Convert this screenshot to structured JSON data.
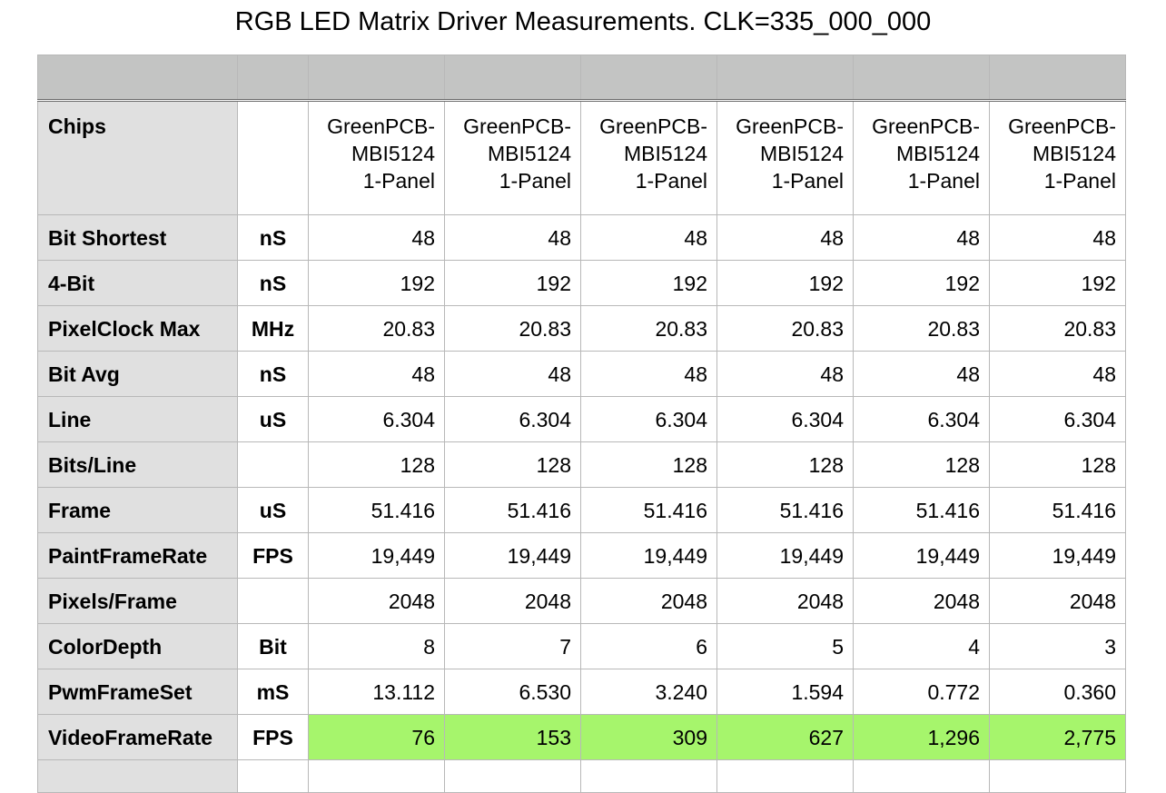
{
  "title": "RGB LED Matrix Driver Measurements. CLK=335_000_000",
  "chips": {
    "label": "Chips",
    "unit": "",
    "columns": [
      [
        "GreenPCB-",
        "MBI5124",
        "1-Panel"
      ],
      [
        "GreenPCB-",
        "MBI5124",
        "1-Panel"
      ],
      [
        "GreenPCB-",
        "MBI5124",
        "1-Panel"
      ],
      [
        "GreenPCB-",
        "MBI5124",
        "1-Panel"
      ],
      [
        "GreenPCB-",
        "MBI5124",
        "1-Panel"
      ],
      [
        "GreenPCB-",
        "MBI5124",
        "1-Panel"
      ]
    ]
  },
  "rows": [
    {
      "label": "Bit Shortest",
      "unit": "nS",
      "values": [
        "48",
        "48",
        "48",
        "48",
        "48",
        "48"
      ]
    },
    {
      "label": "4-Bit",
      "unit": "nS",
      "values": [
        "192",
        "192",
        "192",
        "192",
        "192",
        "192"
      ]
    },
    {
      "label": "PixelClock Max",
      "unit": "MHz",
      "values": [
        "20.83",
        "20.83",
        "20.83",
        "20.83",
        "20.83",
        "20.83"
      ]
    },
    {
      "label": "Bit Avg",
      "unit": "nS",
      "values": [
        "48",
        "48",
        "48",
        "48",
        "48",
        "48"
      ]
    },
    {
      "label": "Line",
      "unit": "uS",
      "values": [
        "6.304",
        "6.304",
        "6.304",
        "6.304",
        "6.304",
        "6.304"
      ]
    },
    {
      "label": "Bits/Line",
      "unit": "",
      "values": [
        "128",
        "128",
        "128",
        "128",
        "128",
        "128"
      ]
    },
    {
      "label": "Frame",
      "unit": "uS",
      "values": [
        "51.416",
        "51.416",
        "51.416",
        "51.416",
        "51.416",
        "51.416"
      ]
    },
    {
      "label": "PaintFrameRate",
      "unit": "FPS",
      "values": [
        "19,449",
        "19,449",
        "19,449",
        "19,449",
        "19,449",
        "19,449"
      ]
    },
    {
      "label": "Pixels/Frame",
      "unit": "",
      "values": [
        "2048",
        "2048",
        "2048",
        "2048",
        "2048",
        "2048"
      ]
    },
    {
      "label": "ColorDepth",
      "unit": "Bit",
      "values": [
        "8",
        "7",
        "6",
        "5",
        "4",
        "3"
      ]
    },
    {
      "label": "PwmFrameSet",
      "unit": "mS",
      "values": [
        "13.112",
        "6.530",
        "3.240",
        "1.594",
        "0.772",
        "0.360"
      ]
    },
    {
      "label": "VideoFrameRate",
      "unit": "FPS",
      "values": [
        "76",
        "153",
        "309",
        "627",
        "1,296",
        "2,775"
      ],
      "highlight": true
    }
  ],
  "colors": {
    "header_band": "#c3c4c3",
    "label_column": "#e0e0e0",
    "highlight_green": "#a6f56c",
    "grid": "#b8b8b8"
  }
}
